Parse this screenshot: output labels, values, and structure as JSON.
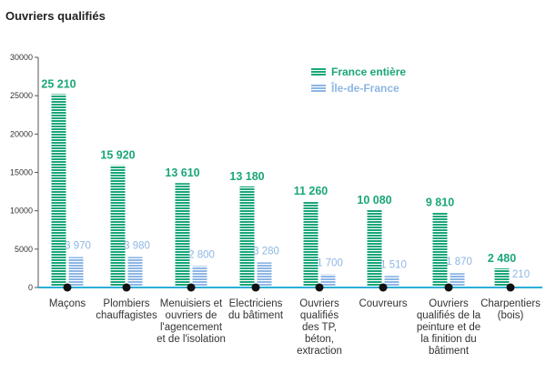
{
  "chart_data": {
    "type": "bar",
    "title": "Ouvriers qualifiés",
    "xlabel": "",
    "ylabel": "",
    "ylim": [
      0,
      30000
    ],
    "yticks": [
      0,
      5000,
      10000,
      15000,
      20000,
      25000,
      30000
    ],
    "legend_position": "top-right",
    "categories": [
      [
        "Maçons"
      ],
      [
        "Plombiers",
        "chauffagistes"
      ],
      [
        "Menuisiers et",
        "ouvriers de",
        "l'agencement",
        "et de l'isolation"
      ],
      [
        "Electriciens",
        "du bâtiment"
      ],
      [
        "Ouvriers",
        "qualifiés",
        "des TP,",
        "béton,",
        "extraction"
      ],
      [
        "Couvreurs"
      ],
      [
        "Ouvriers",
        "qualifiés de la",
        "peinture et de",
        "la finition du",
        "bâtiment"
      ],
      [
        "Charpentiers",
        "(bois)"
      ]
    ],
    "series": [
      {
        "name": "France entière",
        "color": "#1aa67a",
        "values": [
          25210,
          15920,
          13610,
          13180,
          11260,
          10080,
          9810,
          2480
        ],
        "labels": [
          "25 210",
          "15 920",
          "13 610",
          "13 180",
          "11 260",
          "10 080",
          "9 810",
          "2 480"
        ]
      },
      {
        "name": "Île-de-France",
        "color": "#8db6e4",
        "values": [
          3970,
          3980,
          2800,
          3280,
          1700,
          1510,
          1870,
          210
        ],
        "labels": [
          "3 970",
          "3 980",
          "2 800",
          "3 280",
          "1 700",
          "1 510",
          "1 870",
          "210"
        ]
      }
    ],
    "axis_color": "#2ab0d8"
  }
}
